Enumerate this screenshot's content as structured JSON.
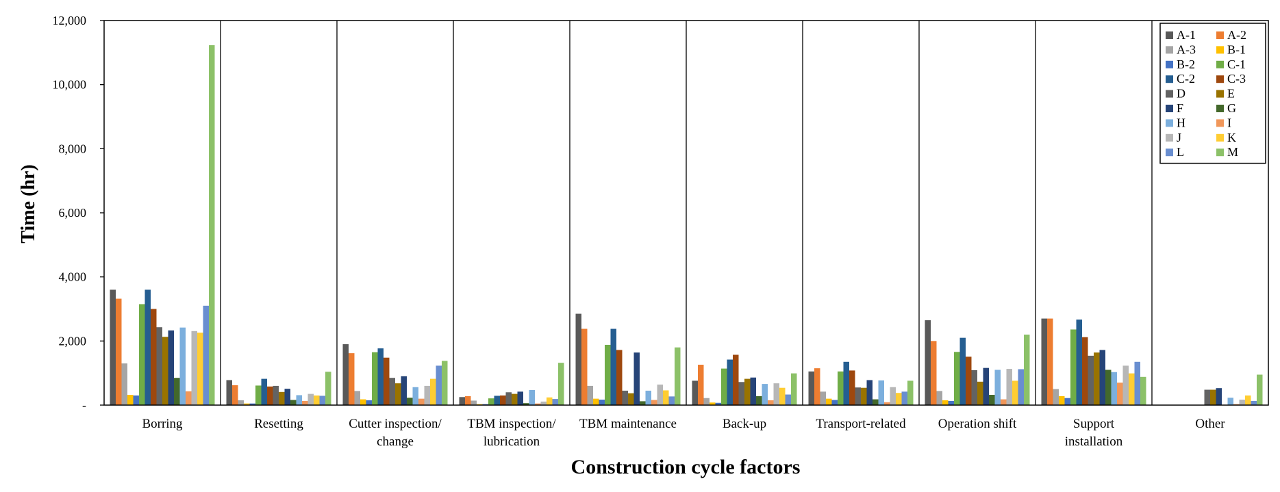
{
  "chart_data": {
    "type": "bar",
    "xlabel": "Construction cycle factors",
    "ylabel": "Time (hr)",
    "ylim": [
      0,
      12000
    ],
    "yticks": [
      0,
      2000,
      4000,
      6000,
      8000,
      10000,
      12000
    ],
    "ytick_labels": [
      "-",
      "2,000",
      "4,000",
      "6,000",
      "8,000",
      "10,000",
      "12,000"
    ],
    "legend_position": "top-right",
    "categories": [
      [
        "Borring"
      ],
      [
        "Resetting"
      ],
      [
        "Cutter inspection/",
        "change"
      ],
      [
        "TBM inspection/",
        "lubrication"
      ],
      [
        "TBM maintenance"
      ],
      [
        "Back-up"
      ],
      [
        "Transport-related"
      ],
      [
        "Operation shift"
      ],
      [
        "Support",
        "installation"
      ],
      [
        "Other"
      ]
    ],
    "series": [
      {
        "name": "A-1",
        "color": "#595959",
        "values": [
          3600,
          780,
          1900,
          250,
          2850,
          760,
          1050,
          2650,
          2700,
          0
        ]
      },
      {
        "name": "A-2",
        "color": "#ED7D31",
        "values": [
          3320,
          620,
          1620,
          280,
          2380,
          1260,
          1150,
          2000,
          2700,
          0
        ]
      },
      {
        "name": "A-3",
        "color": "#A5A5A5",
        "values": [
          1300,
          150,
          440,
          140,
          600,
          220,
          420,
          440,
          500,
          0
        ]
      },
      {
        "name": "B-1",
        "color": "#FFC000",
        "values": [
          320,
          50,
          180,
          30,
          200,
          80,
          200,
          150,
          280,
          0
        ]
      },
      {
        "name": "B-2",
        "color": "#4472C4",
        "values": [
          300,
          50,
          150,
          30,
          170,
          70,
          160,
          130,
          220,
          0
        ]
      },
      {
        "name": "C-1",
        "color": "#70AD47",
        "values": [
          3150,
          610,
          1650,
          210,
          1880,
          1140,
          1050,
          1660,
          2360,
          0
        ]
      },
      {
        "name": "C-2",
        "color": "#255E91",
        "values": [
          3600,
          820,
          1770,
          290,
          2380,
          1420,
          1350,
          2100,
          2670,
          0
        ]
      },
      {
        "name": "C-3",
        "color": "#9E480E",
        "values": [
          3000,
          580,
          1480,
          300,
          1720,
          1570,
          1080,
          1510,
          2120,
          0
        ]
      },
      {
        "name": "D",
        "color": "#636363",
        "values": [
          2430,
          600,
          850,
          400,
          450,
          720,
          550,
          1090,
          1540,
          480
        ]
      },
      {
        "name": "E",
        "color": "#997300",
        "values": [
          2130,
          410,
          680,
          350,
          370,
          820,
          540,
          730,
          1640,
          480
        ]
      },
      {
        "name": "F",
        "color": "#264478",
        "values": [
          2330,
          510,
          900,
          420,
          1640,
          860,
          780,
          1160,
          1720,
          530
        ]
      },
      {
        "name": "G",
        "color": "#43682B",
        "values": [
          850,
          160,
          230,
          60,
          120,
          280,
          180,
          320,
          1100,
          0
        ]
      },
      {
        "name": "H",
        "color": "#7CAFDD",
        "values": [
          2420,
          310,
          560,
          470,
          450,
          660,
          770,
          1100,
          1030,
          230
        ]
      },
      {
        "name": "I",
        "color": "#F1975A",
        "values": [
          430,
          130,
          200,
          50,
          160,
          150,
          90,
          180,
          700,
          30
        ]
      },
      {
        "name": "J",
        "color": "#B7B7B7",
        "values": [
          2310,
          350,
          600,
          110,
          640,
          680,
          560,
          1130,
          1230,
          170
        ]
      },
      {
        "name": "K",
        "color": "#FFCD33",
        "values": [
          2260,
          300,
          820,
          240,
          460,
          540,
          380,
          760,
          990,
          300
        ]
      },
      {
        "name": "L",
        "color": "#698ED0",
        "values": [
          3100,
          290,
          1230,
          190,
          270,
          330,
          420,
          1120,
          1350,
          130
        ]
      },
      {
        "name": "M",
        "color": "#8CC168",
        "values": [
          11230,
          1040,
          1380,
          1320,
          1800,
          990,
          760,
          2200,
          880,
          950
        ]
      }
    ]
  }
}
